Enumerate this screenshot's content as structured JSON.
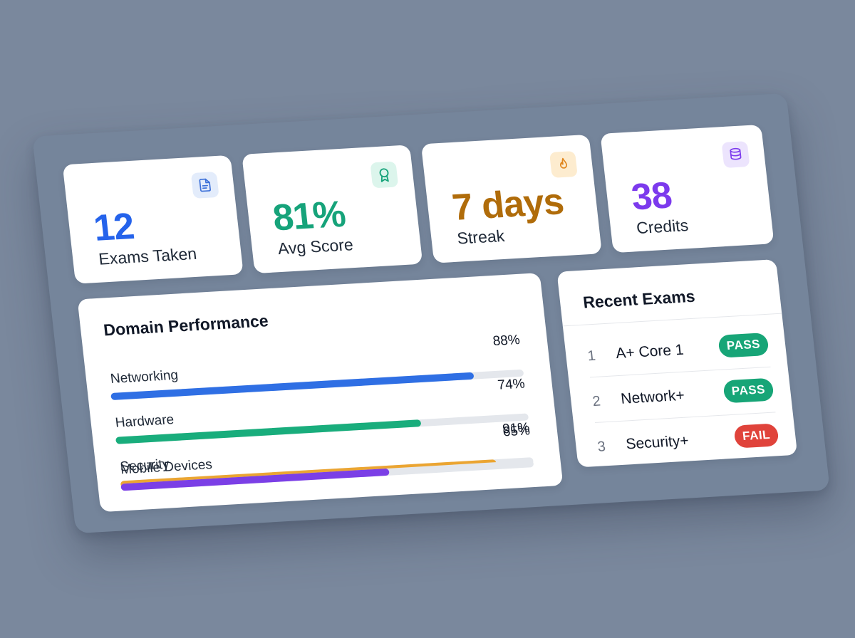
{
  "stats": [
    {
      "value": "12",
      "label": "Exams Taken",
      "icon": "document-icon",
      "color": "#2563eb",
      "icon_bg": "#e3ecfb"
    },
    {
      "value": "81%",
      "label": "Avg Score",
      "icon": "award-icon",
      "color": "#16a37a",
      "icon_bg": "#dcf5ec"
    },
    {
      "value": "7 days",
      "label": "Streak",
      "icon": "flame-icon",
      "color": "#b06c0a",
      "icon_bg": "#fdeccf"
    },
    {
      "value": "38",
      "label": "Credits",
      "icon": "coins-icon",
      "color": "#7c3aed",
      "icon_bg": "#ece4fd"
    }
  ],
  "domain": {
    "title": "Domain Performance",
    "items": [
      {
        "label": "Networking",
        "pct_text": "88%",
        "value": 0.88,
        "color": "#2f6fe4"
      },
      {
        "label": "Hardware",
        "pct_text": "74%",
        "value": 0.74,
        "color": "#19ad7c"
      },
      {
        "label": "Security",
        "pct_text": "91%",
        "value": 0.91,
        "color": "#eba532"
      },
      {
        "label": "Mobile Devices",
        "pct_text": "65%",
        "value": 0.65,
        "color": "#7b3fe6"
      }
    ]
  },
  "recent": {
    "title": "Recent Exams",
    "items": [
      {
        "num": "1",
        "name": "A+ Core 1",
        "status": "PASS",
        "color": "#17a577"
      },
      {
        "num": "2",
        "name": "Network+",
        "status": "PASS",
        "color": "#17a577"
      },
      {
        "num": "3",
        "name": "Security+",
        "status": "FAIL",
        "color": "#e0433b"
      }
    ]
  }
}
